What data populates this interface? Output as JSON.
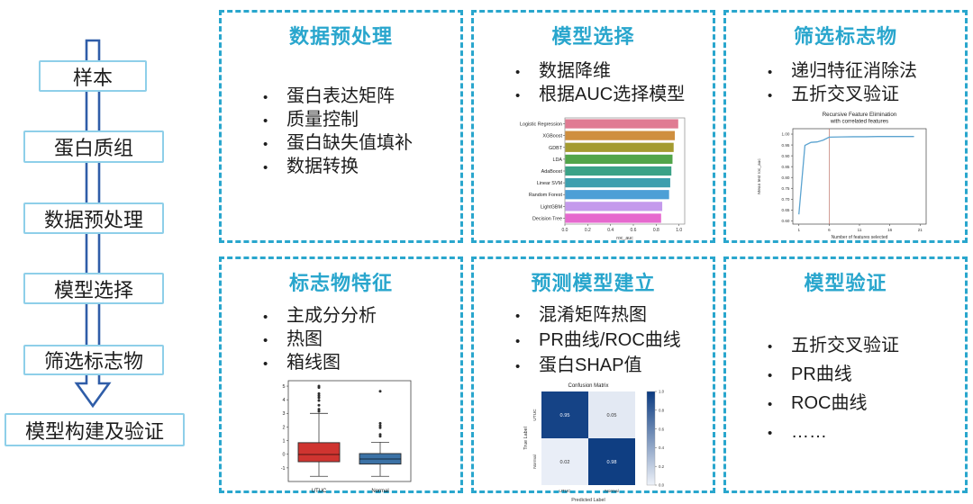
{
  "colors": {
    "accent": "#29a6cd",
    "flow_box_border": "#8ecfe9",
    "flow_arrow": "#2f5da8",
    "text": "#1d1d1d"
  },
  "flowchart": {
    "steps": [
      {
        "label": "样本"
      },
      {
        "label": "蛋白质组"
      },
      {
        "label": "数据预处理"
      },
      {
        "label": "模型选择"
      },
      {
        "label": "筛选标志物"
      },
      {
        "label": "模型构建及验证"
      }
    ]
  },
  "panels": [
    {
      "title": "数据预处理",
      "bullets": [
        "蛋白表达矩阵",
        "质量控制",
        "蛋白缺失值填补",
        "数据转换"
      ]
    },
    {
      "title": "模型选择",
      "bullets": [
        "数据降维",
        "根据AUC选择模型"
      ]
    },
    {
      "title": "筛选标志物",
      "bullets": [
        "递归特征消除法",
        "五折交叉验证"
      ]
    },
    {
      "title": "标志物特征",
      "bullets": [
        "主成分分析",
        "热图",
        "箱线图"
      ]
    },
    {
      "title": "预测模型建立",
      "bullets": [
        "混淆矩阵热图",
        "PR曲线/ROC曲线",
        "蛋白SHAP值"
      ]
    },
    {
      "title": "模型验证",
      "bullets": [
        "五折交叉验证",
        "PR曲线",
        "ROC曲线",
        "……"
      ]
    }
  ],
  "chart_data": [
    {
      "type": "bar",
      "orientation": "horizontal",
      "categories": [
        "Logistic Regression",
        "XGBoost",
        "GDBT",
        "LDA",
        "AdaBoost",
        "Linear SVM",
        "Random Forest",
        "LightGBM",
        "Decision Tree"
      ],
      "values": [
        0.99,
        0.96,
        0.95,
        0.94,
        0.93,
        0.92,
        0.91,
        0.85,
        0.84
      ],
      "bar_colors": [
        "#e07b93",
        "#cf8f3f",
        "#a49b30",
        "#52a54a",
        "#3ba287",
        "#3d9fae",
        "#4d9fd6",
        "#c49aec",
        "#e669ce"
      ],
      "xlabel": "roc_auc",
      "xlim": [
        0,
        1.05
      ],
      "xticks": [
        0.0,
        0.2,
        0.4,
        0.6,
        0.8,
        1.0
      ],
      "grid": false
    },
    {
      "type": "line",
      "title": "Recursive Feature Elimination with correlated features",
      "title_lines": [
        "Recursive Feature Elimination",
        "with correlated features"
      ],
      "xlabel": "Number of features selected",
      "ylabel": "Mean test roc_auc",
      "x": [
        1,
        2,
        3,
        4,
        5,
        6,
        8,
        10,
        12,
        14,
        16,
        18,
        20
      ],
      "y": [
        0.63,
        0.948,
        0.962,
        0.964,
        0.972,
        0.986,
        0.987,
        0.988,
        0.988,
        0.989,
        0.989,
        0.989,
        0.989
      ],
      "vline_x": 6,
      "xticks": [
        1,
        6,
        11,
        16,
        21
      ],
      "yticks": [
        0.6,
        0.65,
        0.7,
        0.75,
        0.8,
        0.85,
        0.9,
        0.95,
        1.0
      ],
      "xlim": [
        0,
        22
      ],
      "ylim": [
        0.585,
        1.025
      ],
      "line_color": "#5ba3d0",
      "vline_color": "#c0756a",
      "grid": false
    },
    {
      "type": "box",
      "categories": [
        "UTUC",
        "Normal"
      ],
      "yticks": [
        -1,
        0,
        1,
        2,
        3,
        4,
        5
      ],
      "ylim": [
        -2.0,
        5.4
      ],
      "series": [
        {
          "name": "UTUC",
          "color": "#cf3430",
          "q1": -0.55,
          "median": -0.02,
          "q3": 0.85,
          "whisker_low": -1.62,
          "whisker_high": 3.0,
          "outliers": [
            3.15,
            3.3,
            3.6,
            3.95,
            4.15,
            4.3,
            4.45,
            4.9,
            5.0
          ]
        },
        {
          "name": "Normal",
          "color": "#3c72a6",
          "q1": -0.72,
          "median": -0.35,
          "q3": 0.05,
          "whisker_low": -1.62,
          "whisker_high": 0.88,
          "outliers": [
            1.32,
            1.45,
            1.95,
            2.1,
            2.27,
            4.62
          ]
        }
      ]
    },
    {
      "type": "heatmap",
      "title": "Confusion Matrix",
      "xlabel": "Predicted Label",
      "ylabel": "True Label",
      "x_categories": [
        "UTUC",
        "Normal"
      ],
      "y_categories": [
        "UTUC",
        "Normal"
      ],
      "values": [
        [
          0.95,
          0.05
        ],
        [
          0.02,
          0.98
        ]
      ],
      "colorbar_ticks": [
        0.0,
        0.2,
        0.4,
        0.6,
        0.8,
        1.0
      ],
      "color_low": "#eef2f9",
      "color_high": "#0a3a80",
      "legend_position": "right"
    }
  ]
}
